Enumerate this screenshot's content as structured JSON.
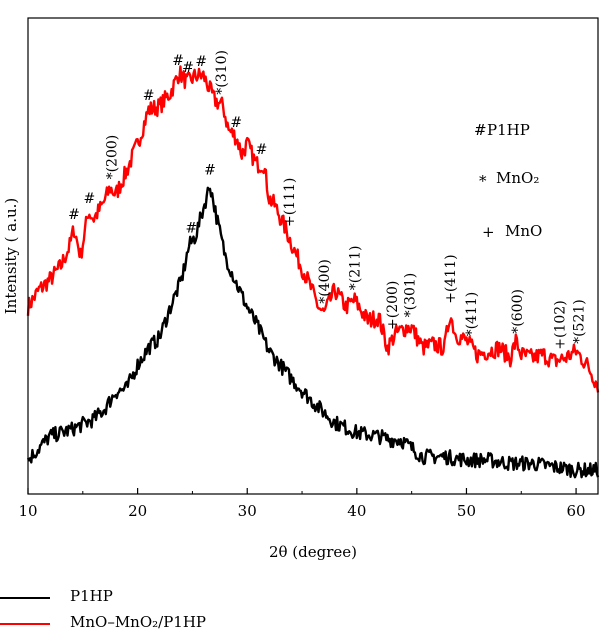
{
  "chart_data": {
    "type": "line",
    "xlabel": "2θ (degree)",
    "ylabel": "Intensity ( a.u.)",
    "xlim": [
      10,
      62
    ],
    "xticks": [
      10,
      20,
      30,
      40,
      50,
      60
    ],
    "y_ticks_shown": false,
    "grid": false,
    "legend_position": "bottom-left",
    "series": [
      {
        "name": "P1HP",
        "color": "#000000",
        "x": [
          10,
          12,
          14,
          16,
          17,
          18,
          19,
          20,
          21,
          22,
          23,
          24,
          24.7,
          25.3,
          26,
          26.6,
          27.3,
          28,
          29,
          30,
          31,
          32,
          33,
          34,
          36,
          38,
          40,
          42,
          43,
          44,
          46,
          48,
          50,
          52,
          54,
          56,
          58,
          60,
          62
        ],
        "y": [
          0.05,
          0.12,
          0.14,
          0.17,
          0.2,
          0.25,
          0.26,
          0.33,
          0.38,
          0.41,
          0.5,
          0.58,
          0.68,
          0.71,
          0.79,
          0.86,
          0.75,
          0.65,
          0.57,
          0.5,
          0.44,
          0.37,
          0.33,
          0.29,
          0.22,
          0.16,
          0.13,
          0.12,
          0.11,
          0.11,
          0.06,
          0.06,
          0.05,
          0.05,
          0.04,
          0.04,
          0.03,
          0.02,
          0.02
        ]
      },
      {
        "name": "MnO–MnO₂/P1HP",
        "color": "#ff0000",
        "x": [
          10,
          11,
          12,
          13,
          13.8,
          14.2,
          14.8,
          15.5,
          16,
          16.8,
          17.5,
          18,
          19,
          20,
          21,
          22,
          23,
          23.8,
          24.5,
          25.3,
          26,
          27,
          27.8,
          28.3,
          29,
          29.5,
          30,
          30.8,
          31.5,
          32,
          32.5,
          33.5,
          34.5,
          35.5,
          36.5,
          37,
          38,
          39,
          39.8,
          41,
          42,
          42.8,
          43.5,
          44.5,
          45,
          46,
          47,
          48,
          48.5,
          49,
          50,
          51,
          52,
          53,
          54,
          54.5,
          55,
          56,
          57,
          58,
          59,
          60,
          61,
          62
        ],
        "y": [
          0.5,
          0.55,
          0.58,
          0.62,
          0.68,
          0.73,
          0.65,
          0.78,
          0.76,
          0.8,
          0.85,
          0.83,
          0.9,
          0.98,
          1.08,
          1.09,
          1.13,
          1.19,
          1.16,
          1.18,
          1.18,
          1.11,
          1.09,
          1.02,
          1.0,
          0.95,
          0.98,
          0.92,
          0.92,
          0.82,
          0.8,
          0.73,
          0.65,
          0.58,
          0.5,
          0.48,
          0.55,
          0.5,
          0.52,
          0.46,
          0.47,
          0.38,
          0.42,
          0.44,
          0.44,
          0.38,
          0.39,
          0.38,
          0.48,
          0.42,
          0.4,
          0.36,
          0.37,
          0.38,
          0.35,
          0.4,
          0.36,
          0.35,
          0.36,
          0.34,
          0.35,
          0.37,
          0.33,
          0.27
        ]
      }
    ],
    "annotations": [
      {
        "text": "#",
        "x": 14.2,
        "series": 1
      },
      {
        "text": "#",
        "x": 15.6,
        "series": 1
      },
      {
        "text": "*(200)",
        "x": 17.6,
        "series": 1
      },
      {
        "text": "#",
        "x": 21.0,
        "series": 1
      },
      {
        "text": "#",
        "x": 23.7,
        "series": 1
      },
      {
        "text": "#",
        "x": 24.6,
        "series": 1
      },
      {
        "text": "#",
        "x": 25.8,
        "series": 1
      },
      {
        "text": "*(310)",
        "x": 27.6,
        "series": 1
      },
      {
        "text": "#",
        "x": 29.0,
        "series": 1
      },
      {
        "text": "#",
        "x": 31.3,
        "series": 1
      },
      {
        "text": "+(111)",
        "x": 33.8,
        "series": 1
      },
      {
        "text": "*(400)",
        "x": 37.0,
        "series": 1
      },
      {
        "text": "*(211)",
        "x": 39.8,
        "series": 1
      },
      {
        "text": "+(200)",
        "x": 43.2,
        "series": 1
      },
      {
        "text": "*(301)",
        "x": 44.8,
        "series": 1
      },
      {
        "text": "+(411)",
        "x": 48.5,
        "series": 1
      },
      {
        "text": "*(411)",
        "x": 50.4,
        "series": 1
      },
      {
        "text": "*(600)",
        "x": 54.6,
        "series": 1
      },
      {
        "text": "+(102)",
        "x": 58.5,
        "series": 1
      },
      {
        "text": "*(521)",
        "x": 60.2,
        "series": 1
      },
      {
        "text": "#",
        "x": 24.9,
        "series": 0
      },
      {
        "text": "#",
        "x": 26.6,
        "series": 0
      }
    ],
    "key_legend": [
      {
        "symbol": "#",
        "label": "P1HP"
      },
      {
        "symbol": "*",
        "label": "MnO₂"
      },
      {
        "symbol": "+",
        "label": "MnO"
      }
    ]
  }
}
